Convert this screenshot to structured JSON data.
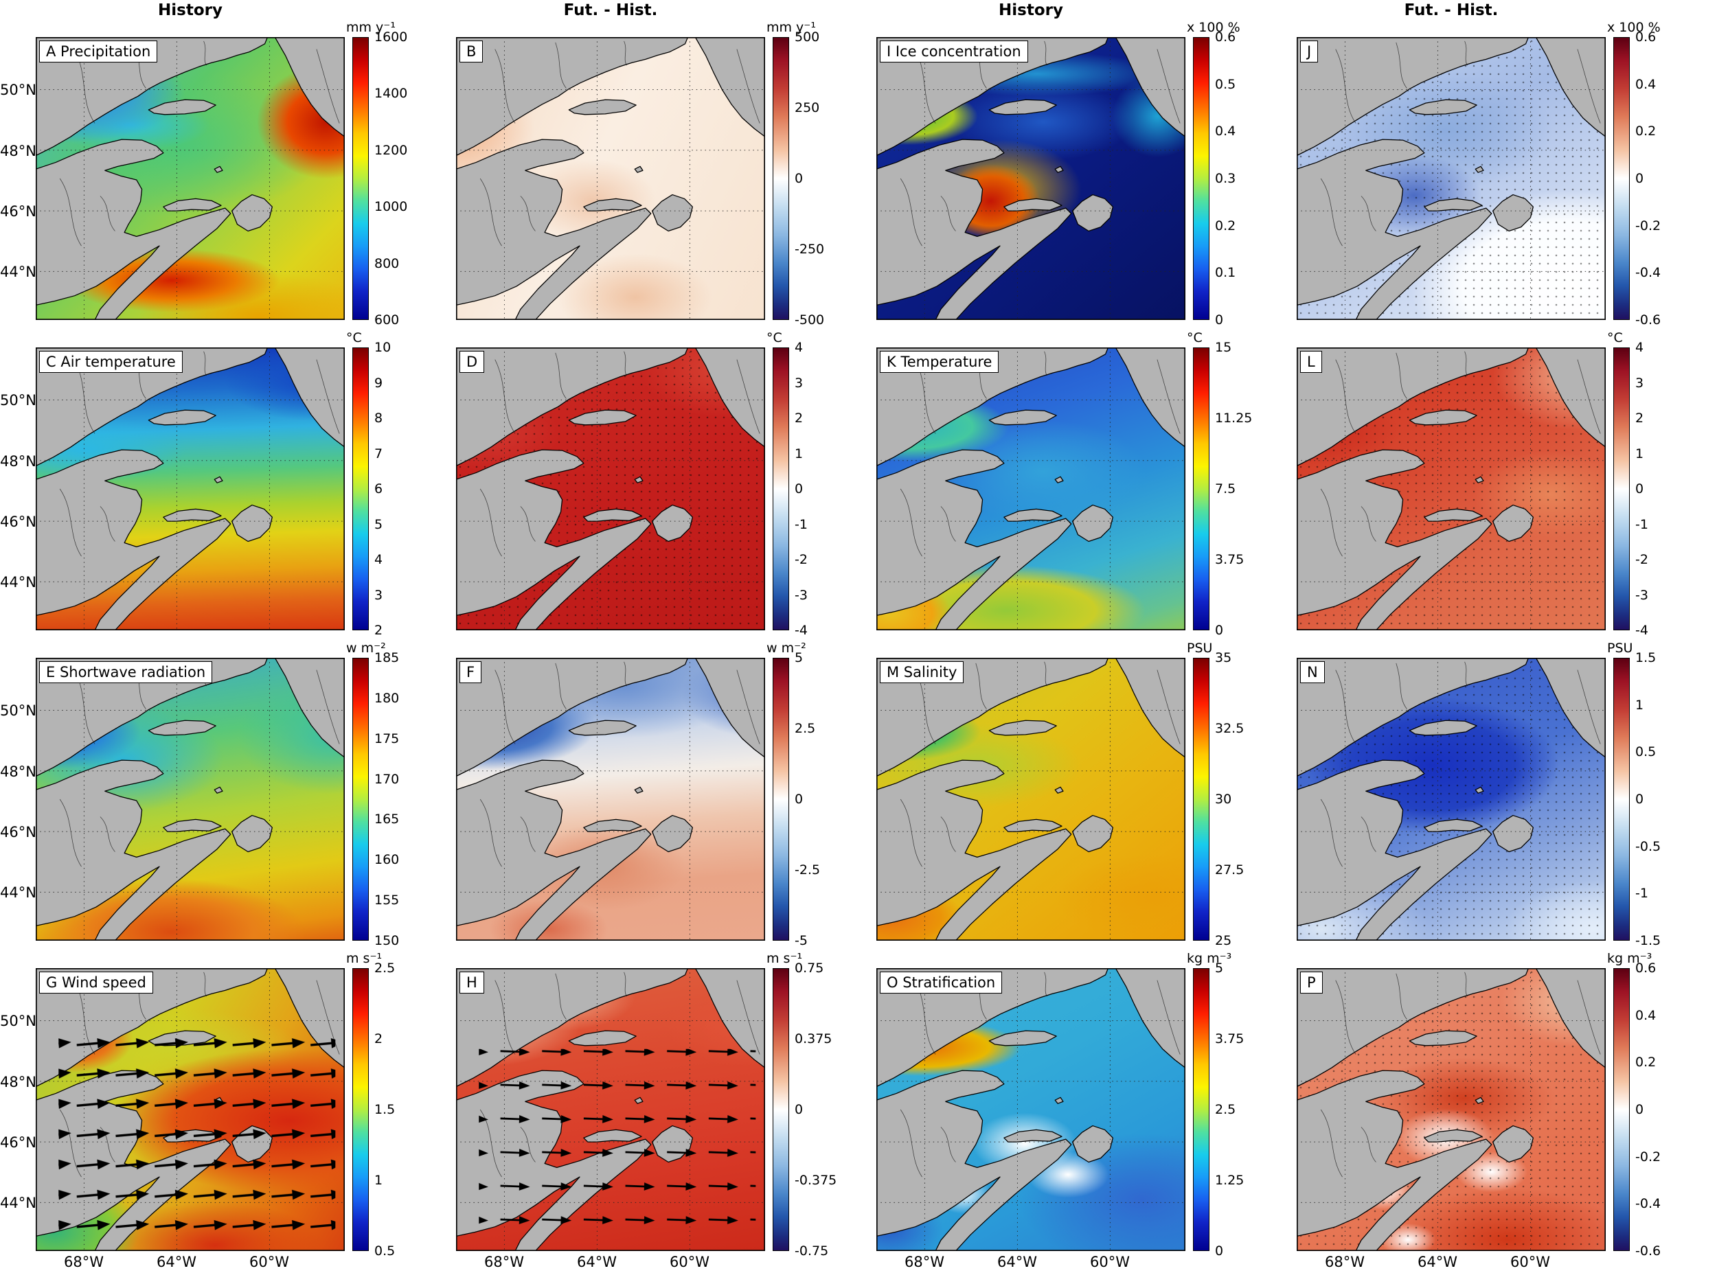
{
  "figure": {
    "column_headers": [
      "History",
      "Fut. - Hist.",
      "History",
      "Fut. - Hist."
    ],
    "lat_labels": [
      "50°N",
      "48°N",
      "46°N",
      "44°N"
    ],
    "lon_labels": [
      "68°W",
      "64°W",
      "60°W"
    ]
  },
  "panels": {
    "A": {
      "label": "A Precipitation",
      "unit": "mm y⁻¹",
      "colormap": "jet",
      "ticks": [
        "1600",
        "1400",
        "1200",
        "1000",
        "800",
        "600"
      ]
    },
    "B": {
      "label": "B",
      "unit": "mm y⁻¹",
      "colormap": "red-blue-diverging",
      "ticks": [
        "500",
        "250",
        "0",
        "-250",
        "-500"
      ]
    },
    "C": {
      "label": "C Air temperature",
      "unit": "°C",
      "colormap": "jet",
      "ticks": [
        "10",
        "9",
        "8",
        "7",
        "6",
        "5",
        "4",
        "3",
        "2"
      ]
    },
    "D": {
      "label": "D",
      "unit": "°C",
      "colormap": "red-blue-diverging",
      "ticks": [
        "4",
        "3",
        "2",
        "1",
        "0",
        "-1",
        "-2",
        "-3",
        "-4"
      ]
    },
    "E": {
      "label": "E Shortwave radiation",
      "unit": "w m⁻²",
      "colormap": "jet",
      "ticks": [
        "185",
        "180",
        "175",
        "170",
        "165",
        "160",
        "155",
        "150"
      ]
    },
    "F": {
      "label": "F",
      "unit": "w m⁻²",
      "colormap": "red-blue-diverging",
      "ticks": [
        "5",
        "2.5",
        "0",
        "-2.5",
        "-5"
      ]
    },
    "G": {
      "label": "G Wind speed",
      "unit": "m s⁻¹",
      "colormap": "jet",
      "ticks": [
        "2.5",
        "2",
        "1.5",
        "1",
        "0.5"
      ]
    },
    "H": {
      "label": "H",
      "unit": "m s⁻¹",
      "colormap": "red-blue-diverging",
      "ticks": [
        "0.75",
        "0.375",
        "0",
        "-0.375",
        "-0.75"
      ]
    },
    "I": {
      "label": "I Ice concentration",
      "unit": "x 100 %",
      "colormap": "jet",
      "ticks": [
        "0.6",
        "0.5",
        "0.4",
        "0.3",
        "0.2",
        "0.1",
        "0"
      ]
    },
    "J": {
      "label": "J",
      "unit": "x 100 %",
      "colormap": "red-blue-diverging",
      "ticks": [
        "0.6",
        "0.4",
        "0.2",
        "0",
        "-0.2",
        "-0.4",
        "-0.6"
      ]
    },
    "K": {
      "label": "K Temperature",
      "unit": "°C",
      "colormap": "jet",
      "ticks": [
        "15",
        "11.25",
        "7.5",
        "3.75",
        "0"
      ]
    },
    "L": {
      "label": "L",
      "unit": "°C",
      "colormap": "red-blue-diverging",
      "ticks": [
        "4",
        "3",
        "2",
        "1",
        "0",
        "-1",
        "-2",
        "-3",
        "-4"
      ]
    },
    "M": {
      "label": "M Salinity",
      "unit": "PSU",
      "colormap": "jet",
      "ticks": [
        "35",
        "32.5",
        "30",
        "27.5",
        "25"
      ]
    },
    "N": {
      "label": "N",
      "unit": "PSU",
      "colormap": "red-blue-diverging",
      "ticks": [
        "1.5",
        "1",
        "0.5",
        "0",
        "-0.5",
        "-1",
        "-1.5"
      ]
    },
    "O": {
      "label": "O Stratification",
      "unit": "kg m⁻³",
      "colormap": "jet",
      "ticks": [
        "5",
        "3.75",
        "2.5",
        "1.25",
        "0"
      ]
    },
    "P": {
      "label": "P",
      "unit": "kg m⁻³",
      "colormap": "red-blue-diverging",
      "ticks": [
        "0.6",
        "0.4",
        "0.2",
        "0",
        "-0.2",
        "-0.4",
        "-0.6"
      ]
    }
  }
}
